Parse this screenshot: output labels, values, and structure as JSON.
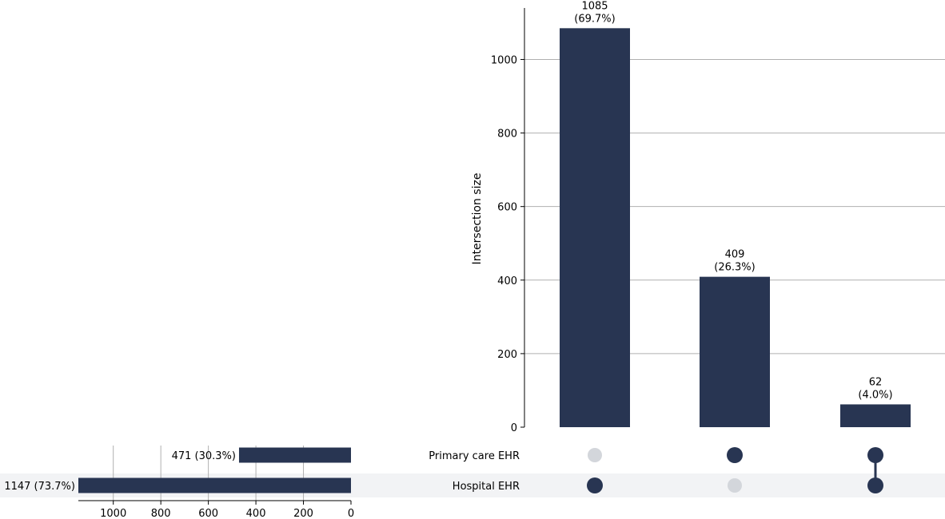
{
  "chart_data": {
    "type": "upset",
    "intersections": {
      "ylabel": "Intersection size",
      "ylim": [
        0,
        1140
      ],
      "yticks": [
        0,
        200,
        400,
        600,
        800,
        1000
      ],
      "bars": [
        {
          "value": 1085,
          "value_label": "1085",
          "pct_label": "(69.7%)",
          "members": [
            "Hospital EHR"
          ]
        },
        {
          "value": 409,
          "value_label": "409",
          "pct_label": "(26.3%)",
          "members": [
            "Primary care EHR"
          ]
        },
        {
          "value": 62,
          "value_label": "62",
          "pct_label": "(4.0%)",
          "members": [
            "Primary care EHR",
            "Hospital EHR"
          ]
        }
      ]
    },
    "sets": [
      {
        "name": "Primary care EHR",
        "size": 471,
        "label": "471 (30.3%)"
      },
      {
        "name": "Hospital EHR",
        "size": 1147,
        "label": "1147 (73.7%)"
      }
    ],
    "set_size_axis": {
      "ticks": [
        1000,
        800,
        600,
        400,
        200,
        0
      ],
      "max": 1147
    },
    "grid": true,
    "colors": {
      "bar": "#283552",
      "dot_active": "#283552",
      "dot_inactive": "#d3d6db",
      "row_shade": "#f2f3f5",
      "grid": "#b0b0b0"
    }
  }
}
